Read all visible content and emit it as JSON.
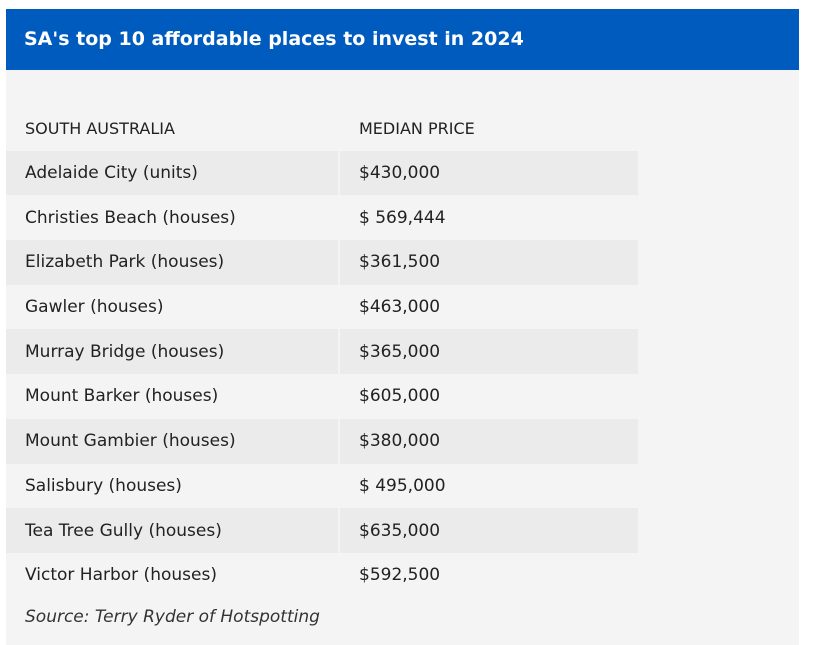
{
  "title": "SA's top 10 affordable places to invest in 2024",
  "table": {
    "headers": [
      "SOUTH AUSTRALIA",
      "MEDIAN PRICE"
    ],
    "rows": [
      [
        "Adelaide City (units)",
        "$430,000"
      ],
      [
        "Christies Beach (houses)",
        "$ 569,444"
      ],
      [
        "Elizabeth Park (houses)",
        "$361,500"
      ],
      [
        "Gawler (houses)",
        "$463,000"
      ],
      [
        "Murray Bridge (houses)",
        "$365,000"
      ],
      [
        "Mount Barker (houses)",
        "$605,000"
      ],
      [
        "Mount Gambier (houses)",
        "$380,000"
      ],
      [
        "Salisbury (houses)",
        "$ 495,000"
      ],
      [
        "Tea Tree Gully (houses)",
        "$635,000"
      ],
      [
        "Victor Harbor (houses)",
        "$592,500"
      ]
    ]
  },
  "source": "Source: Terry Ryder of Hotspotting",
  "colors": {
    "header_bg": "#005bbf",
    "card_bg": "#f4f4f4",
    "row_shade": "#ebebeb"
  }
}
